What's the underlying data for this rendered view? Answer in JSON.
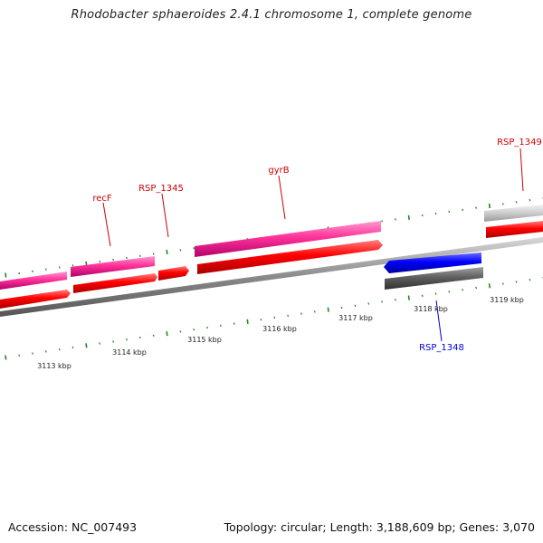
{
  "title": "Rhodobacter sphaeroides 2.4.1 chromosome 1, complete genome",
  "footer": {
    "accession": "Accession: NC_007493",
    "summary": "Topology: circular; Length: 3,188,609 bp; Genes: 3,070"
  },
  "scale": {
    "ticks": [
      {
        "label": "3113 kbp"
      },
      {
        "label": "3114 kbp"
      },
      {
        "label": "3115 kbp"
      },
      {
        "label": "3116 kbp"
      },
      {
        "label": "3117 kbp"
      },
      {
        "label": "3118 kbp"
      },
      {
        "label": "3119 kbp"
      }
    ]
  },
  "genes": [
    {
      "name": "recF",
      "color": "#cc0000"
    },
    {
      "name": "RSP_1345",
      "color": "#cc0000"
    },
    {
      "name": "gyrB",
      "color": "#cc0000"
    },
    {
      "name": "RSP_1349",
      "color": "#cc0000"
    },
    {
      "name": "RSP_1348",
      "color": "#0000cc"
    }
  ],
  "colors": {
    "forward_cds": "#ff3399",
    "forward_gene": "#ff0000",
    "reverse_cds": "#0000ff",
    "reverse_gene": "#555555",
    "grey_cds": "#c8c8c8",
    "backbone": "#8a8a8a",
    "tick": "#228822"
  }
}
